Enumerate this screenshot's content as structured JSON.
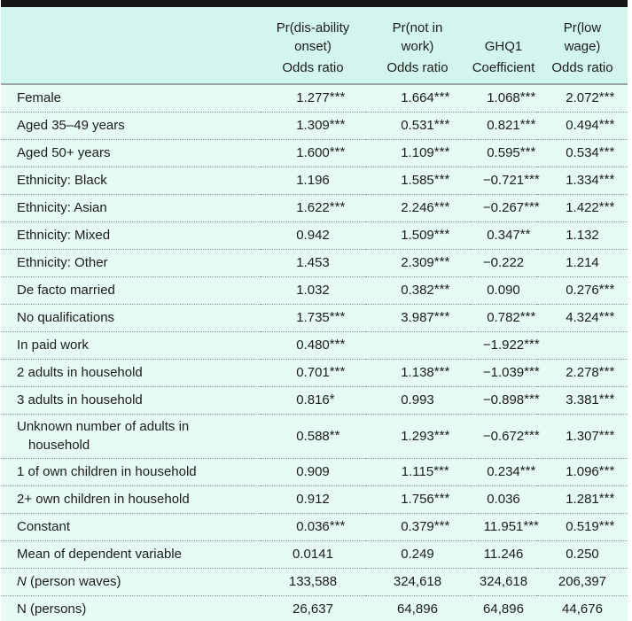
{
  "table": {
    "colors": {
      "header_bg": "#d2f6ee",
      "body_bg": "#e6fbf6",
      "rule_black": "#161616",
      "header_separator": "#9aa8a4",
      "row_dotted_separator": "#859d97",
      "text": "#1c1c1c"
    },
    "col_groups": [
      "Pr(dis-ability\nonset)",
      "Pr(not in\nwork)",
      "GHQ1",
      "Pr(low\nwage)"
    ],
    "col_measures": [
      "Odds ratio",
      "Odds ratio",
      "Coefficient",
      "Odds ratio"
    ],
    "rows": [
      {
        "label": "Female",
        "values": [
          "1.277***",
          "1.664***",
          "1.068***",
          "2.072***"
        ]
      },
      {
        "label": "Aged 35–49 years",
        "values": [
          "1.309***",
          "0.531***",
          "0.821***",
          "0.494***"
        ]
      },
      {
        "label": "Aged 50+ years",
        "values": [
          "1.600***",
          "1.109***",
          "0.595***",
          "0.534***"
        ]
      },
      {
        "label": "Ethnicity: Black",
        "values": [
          "1.196",
          "1.585***",
          "−0.721***",
          "1.334***"
        ]
      },
      {
        "label": "Ethnicity: Asian",
        "values": [
          "1.622***",
          "2.246***",
          "−0.267***",
          "1.422***"
        ]
      },
      {
        "label": "Ethnicity: Mixed",
        "values": [
          "0.942",
          "1.509***",
          "0.347**",
          "1.132"
        ]
      },
      {
        "label": "Ethnicity: Other",
        "values": [
          "1.453",
          "2.309***",
          "−0.222",
          "1.214"
        ]
      },
      {
        "label": "De facto married",
        "values": [
          "1.032",
          "0.382***",
          "0.090",
          "0.276***"
        ]
      },
      {
        "label": "No qualifications",
        "values": [
          "1.735***",
          "3.987***",
          "0.782***",
          "4.324***"
        ]
      },
      {
        "label": "In paid work",
        "values": [
          "0.480***",
          "",
          "−1.922***",
          ""
        ]
      },
      {
        "label": "2 adults in household",
        "values": [
          "0.701***",
          "1.138***",
          "−1.039***",
          "2.278***"
        ]
      },
      {
        "label": "3 adults in household",
        "values": [
          "0.816*",
          "0.993",
          "−0.898***",
          "3.381***"
        ]
      },
      {
        "label": "Unknown number of adults in",
        "label_line2": "household",
        "values": [
          "0.588**",
          "1.293***",
          "−0.672***",
          "1.307***"
        ]
      },
      {
        "label": "1 of own children in household",
        "values": [
          "0.909",
          "1.115***",
          "0.234***",
          "1.096***"
        ]
      },
      {
        "label": "2+ own children in household",
        "values": [
          "0.912",
          "1.756***",
          "0.036",
          "1.281***"
        ]
      },
      {
        "label": "Constant",
        "values": [
          "0.036***",
          "0.379***",
          "11.951***",
          "0.519***"
        ]
      },
      {
        "label": "Mean of dependent variable",
        "values": [
          "0.0141",
          "0.249",
          "11.246",
          "0.250"
        ]
      },
      {
        "italic_prefix": "N",
        "label": " (person waves)",
        "values": [
          "133,588",
          "324,618",
          "324,618",
          "206,397"
        ]
      },
      {
        "label": "N (persons)",
        "values": [
          "26,637",
          "64,896",
          "64,896",
          "44,676"
        ]
      }
    ]
  }
}
